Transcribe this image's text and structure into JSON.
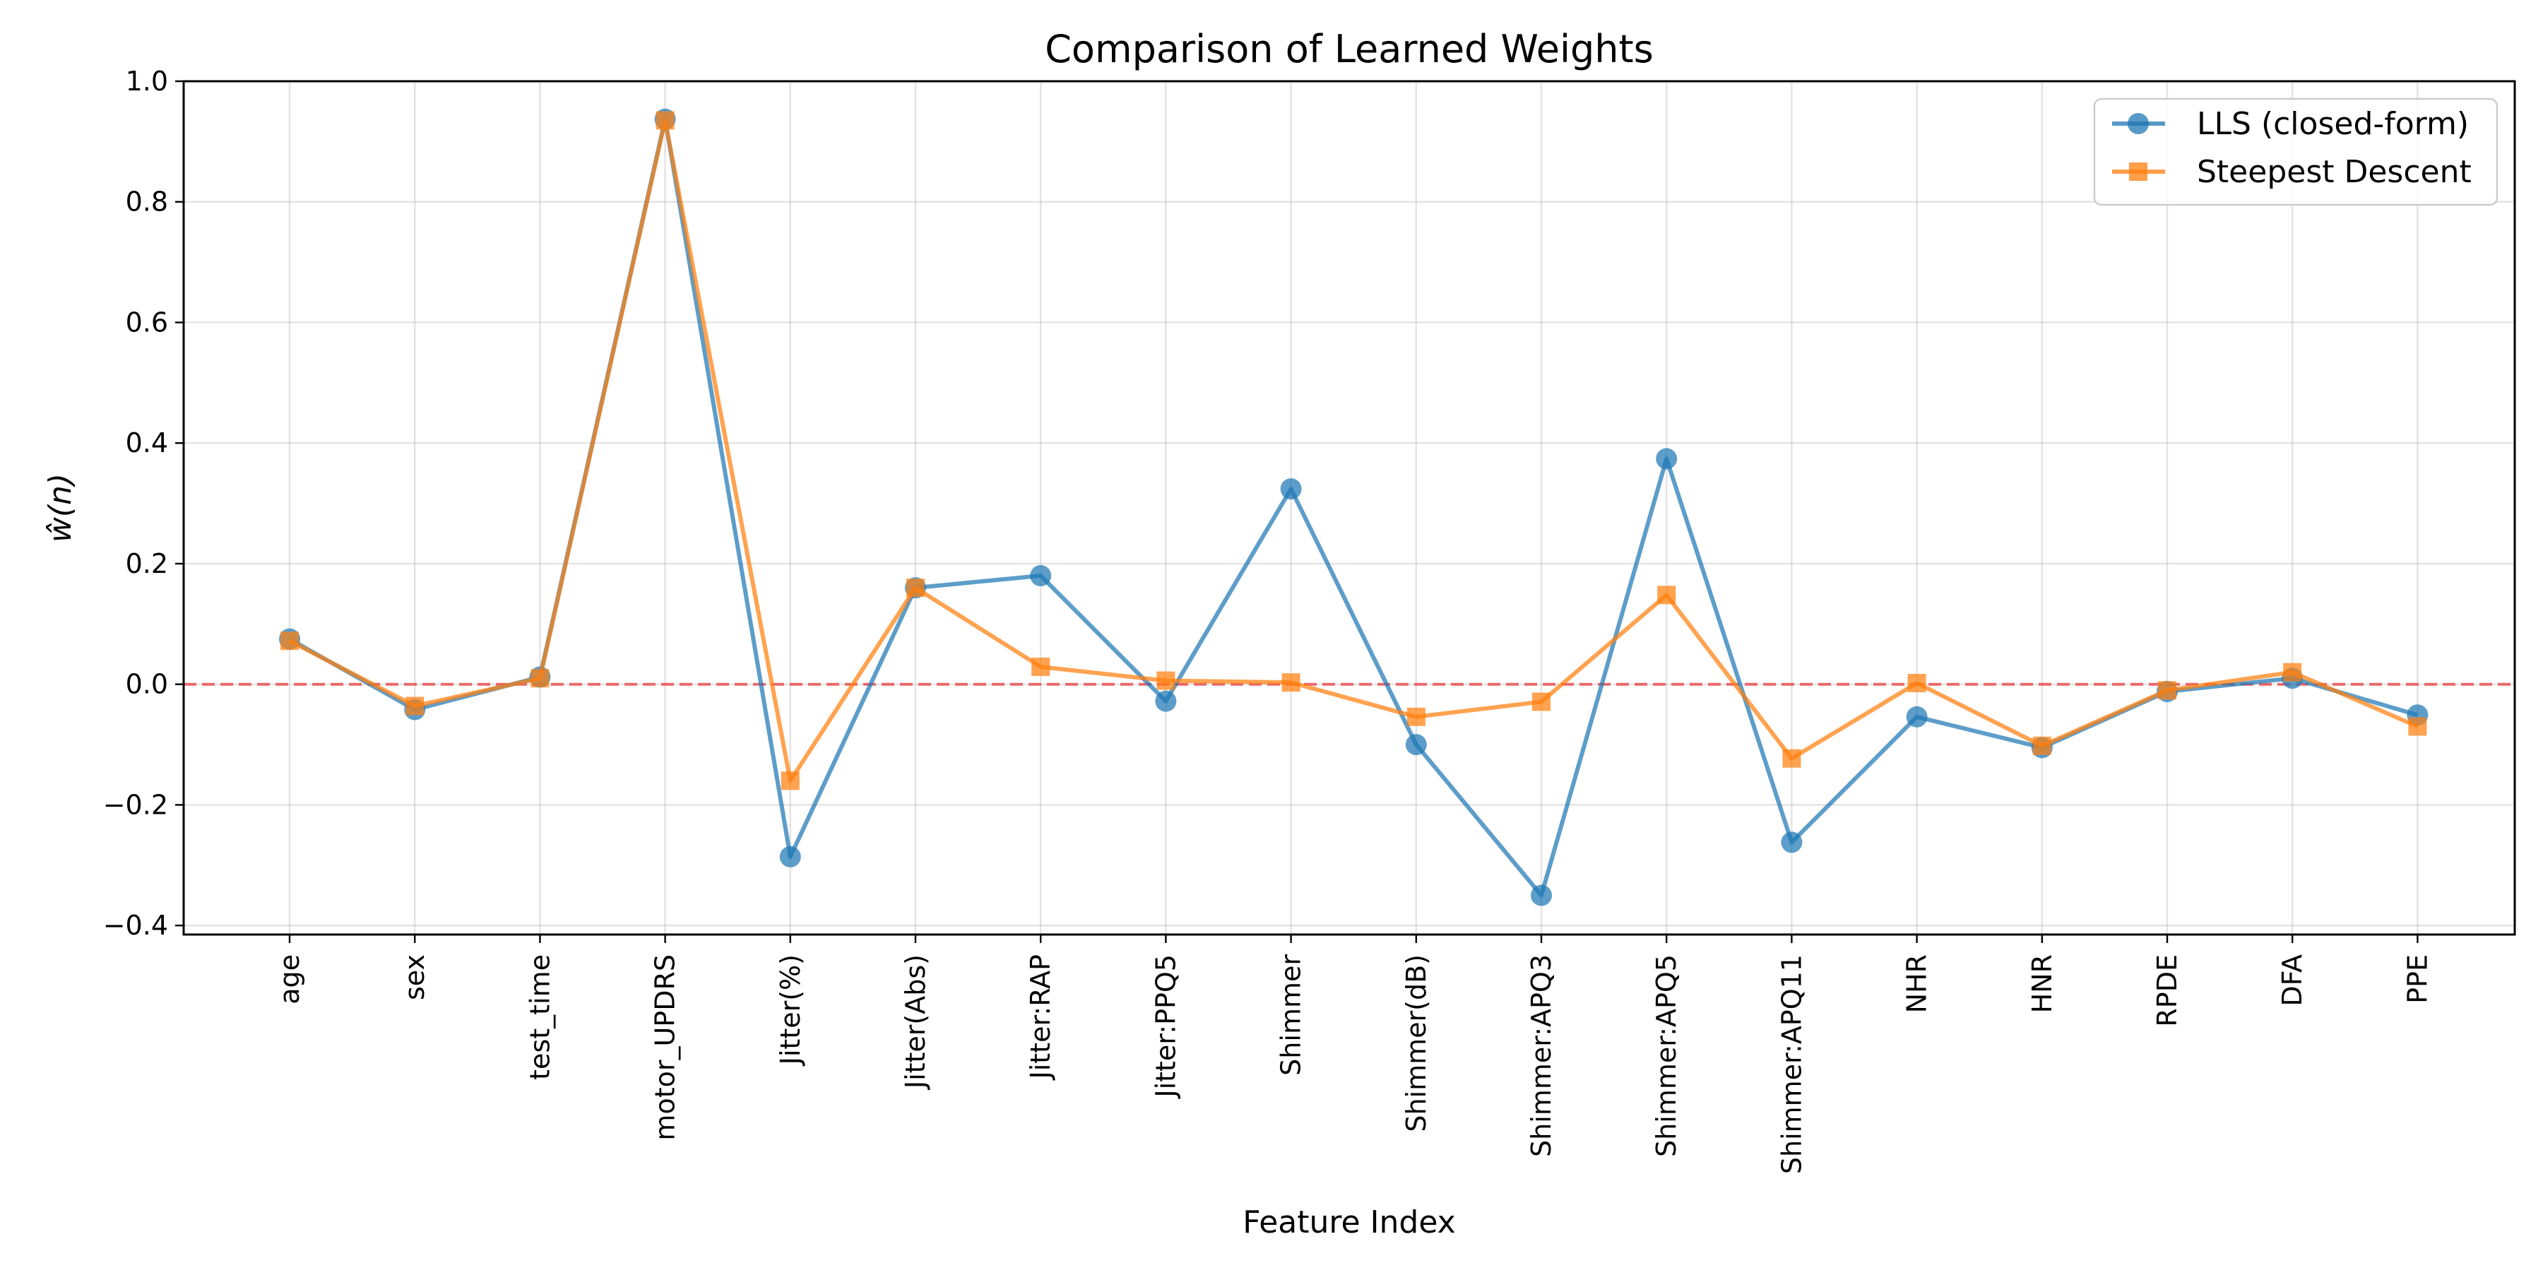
{
  "chart_data": {
    "type": "line",
    "title": "Comparison of Learned Weights",
    "xlabel": "Feature Index",
    "ylabel": "ŵ(n)",
    "categories": [
      "age",
      "sex",
      "test_time",
      "motor_UPDRS",
      "Jitter(%)",
      "Jitter(Abs)",
      "Jitter:RAP",
      "Jitter:PPQ5",
      "Shimmer",
      "Shimmer(dB)",
      "Shimmer:APQ3",
      "Shimmer:APQ5",
      "Shimmer:APQ11",
      "NHR",
      "HNR",
      "RPDE",
      "DFA",
      "PPE"
    ],
    "yticks": [
      -0.4,
      -0.2,
      0.0,
      0.2,
      0.4,
      0.6,
      0.8,
      1.0
    ],
    "ytick_labels": [
      "−0.4",
      "−0.2",
      "0.0",
      "0.2",
      "0.4",
      "0.6",
      "0.8",
      "1.0"
    ],
    "ylim": [
      -0.415,
      1.0
    ],
    "grid": true,
    "legend_position": "top-right",
    "reference_line": {
      "y": 0.0,
      "style": "dashed",
      "color": "#e8474a"
    },
    "series": [
      {
        "name": "LLS (closed-form)",
        "color": "#1f77b4",
        "marker": "circle",
        "values": [
          0.075,
          -0.042,
          0.012,
          0.937,
          -0.286,
          0.16,
          0.18,
          -0.028,
          0.324,
          -0.1,
          -0.35,
          0.374,
          -0.262,
          -0.054,
          -0.105,
          -0.012,
          0.01,
          -0.051
        ]
      },
      {
        "name": "Steepest Descent",
        "color": "#ff7f0e",
        "marker": "square",
        "values": [
          0.072,
          -0.036,
          0.01,
          0.935,
          -0.16,
          0.16,
          0.029,
          0.006,
          0.003,
          -0.054,
          -0.029,
          0.148,
          -0.123,
          0.002,
          -0.102,
          -0.01,
          0.02,
          -0.07
        ]
      }
    ]
  }
}
